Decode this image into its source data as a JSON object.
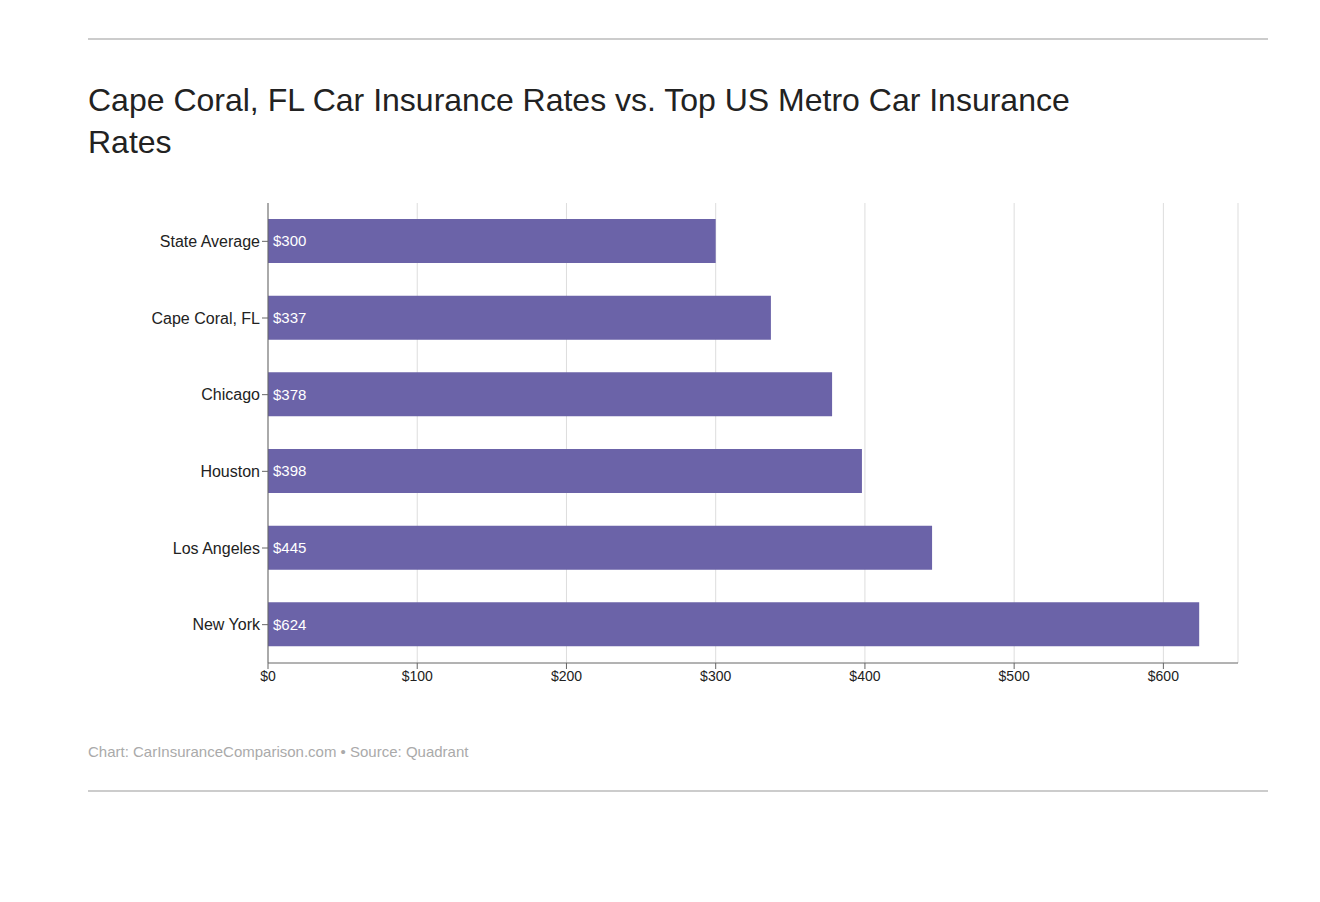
{
  "chart_data": {
    "type": "bar",
    "title": "Cape Coral, FL Car Insurance Rates vs. Top US Metro Car Insurance Rates",
    "annotations": [
      "Chart: CarInsuranceComparison.com • Source: Quadrant"
    ],
    "orientation": "horizontal",
    "categories": [
      "State Average",
      "Cape Coral, FL",
      "Chicago",
      "Houston",
      "Los Angeles",
      "New York"
    ],
    "values": [
      300,
      337,
      378,
      398,
      445,
      624
    ],
    "value_labels": [
      "$300",
      "$337",
      "$378",
      "$398",
      "$445",
      "$624"
    ],
    "data_labels": true,
    "color": "#6b63a8",
    "xlim": [
      0,
      650
    ],
    "xticks": [
      {
        "value": 0,
        "label": "$0"
      },
      {
        "value": 100,
        "label": "$100"
      },
      {
        "value": 200,
        "label": "$200"
      },
      {
        "value": 300,
        "label": "$300"
      },
      {
        "value": 400,
        "label": "$400"
      },
      {
        "value": 500,
        "label": "$500"
      },
      {
        "value": 600,
        "label": "$600"
      }
    ],
    "grid": true
  }
}
